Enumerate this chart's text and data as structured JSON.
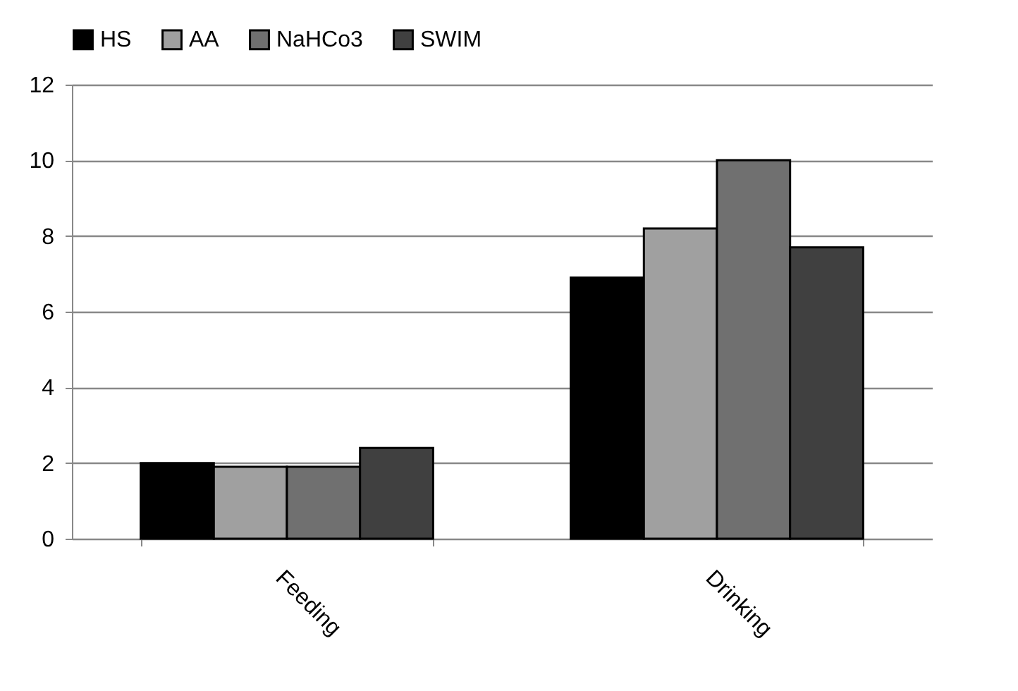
{
  "chart_data": {
    "type": "bar",
    "categories": [
      "Feeding",
      "Drinking"
    ],
    "series": [
      {
        "name": "HS",
        "color": "#000000",
        "values": [
          2.0,
          6.9
        ]
      },
      {
        "name": "AA",
        "color": "#a0a0a0",
        "values": [
          1.9,
          8.2
        ]
      },
      {
        "name": "NaHCo3",
        "color": "#707070",
        "values": [
          1.9,
          10
        ]
      },
      {
        "name": "SWIM",
        "color": "#404040",
        "values": [
          2.4,
          7.7
        ]
      }
    ],
    "ylim": [
      0,
      12
    ],
    "yticks": [
      0,
      2,
      4,
      6,
      8,
      10,
      12
    ],
    "grid": "y",
    "legend": "top"
  }
}
